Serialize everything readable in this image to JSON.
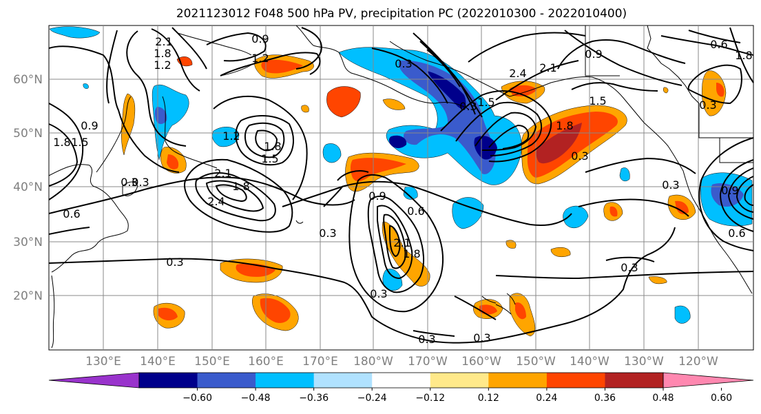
{
  "title": "2021123012 F048 500 hPa PV, precipitation PC (2022010300 - 2022010400)",
  "lat_labels": [
    "60°N",
    "50°N",
    "40°N",
    "30°N",
    "20°N"
  ],
  "lon_labels": [
    "130°E",
    "140°E",
    "150°E",
    "160°E",
    "170°E",
    "180°W",
    "170°W",
    "160°W",
    "150°W",
    "140°W",
    "130°W",
    "120°W"
  ],
  "colorbar": {
    "colors": [
      "#9933cc",
      "#00008b",
      "#3a5bcc",
      "#00bfff",
      "#b0e2ff",
      "#ffffff",
      "#ffe98a",
      "#ffa500",
      "#ff4500",
      "#b22222",
      "#ff88b0"
    ],
    "tick_labels": [
      "−0.60",
      "−0.48",
      "−0.36",
      "−0.24",
      "−0.12",
      "0.12",
      "0.24",
      "0.36",
      "0.48",
      "0.60"
    ]
  },
  "contour_labels": [
    "2.1",
    "1.8",
    "1.2",
    "0.9",
    "1.2",
    "0.9",
    "1.8",
    "1.5",
    "0.3",
    "1.2",
    "1.8",
    "1.5",
    "2.1",
    "1.8",
    "2.4",
    "0.3",
    "0.6",
    "0.3",
    "0.9",
    "0.6",
    "0.3",
    "2.1",
    "1.8",
    "0.3",
    "0.3",
    "0.3",
    "0.3",
    "0.3",
    "1.5",
    "2.4",
    "2.1",
    "1.8",
    "0.3",
    "0.9",
    "1.5",
    "1.8",
    "0.3",
    "0.6",
    "0.3",
    "0.3",
    "0.6",
    "0.9"
  ],
  "colors": {
    "grid": "#888888",
    "contour": "#000000",
    "tick_text": "#7f7f7f"
  }
}
